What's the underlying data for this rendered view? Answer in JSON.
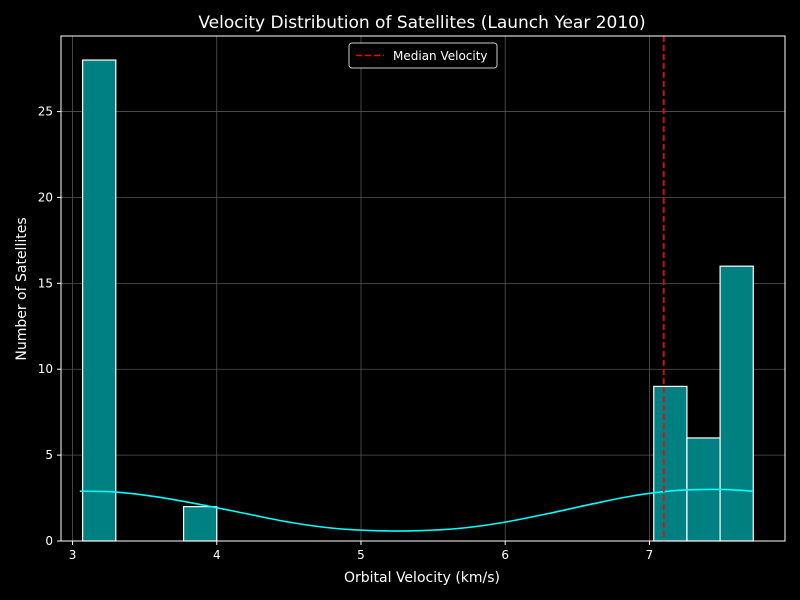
{
  "chart_data": {
    "type": "bar",
    "title": "Velocity Distribution of Satellites (Launch Year 2010)",
    "xlabel": "Orbital Velocity (km/s)",
    "ylabel": "Number of Satellites",
    "xlim": [
      2.92,
      7.94
    ],
    "ylim": [
      0,
      29.4
    ],
    "xticks": [
      3,
      4,
      5,
      6,
      7
    ],
    "yticks": [
      0,
      5,
      10,
      15,
      20,
      25
    ],
    "grid": true,
    "legend_position": "top-center",
    "bins": [
      {
        "x0": 3.07,
        "x1": 3.3,
        "count": 28
      },
      {
        "x0": 3.77,
        "x1": 4.0,
        "count": 2
      },
      {
        "x0": 7.03,
        "x1": 7.26,
        "count": 9
      },
      {
        "x0": 7.26,
        "x1": 7.49,
        "count": 6
      },
      {
        "x0": 7.49,
        "x1": 7.72,
        "count": 16
      }
    ],
    "kde_curve": {
      "x": [
        3.05,
        3.3,
        3.6,
        3.9,
        4.2,
        4.5,
        4.8,
        5.1,
        5.4,
        5.7,
        6.0,
        6.3,
        6.6,
        6.9,
        7.2,
        7.5,
        7.72
      ],
      "y": [
        2.9,
        2.85,
        2.55,
        2.1,
        1.6,
        1.1,
        0.75,
        0.6,
        0.6,
        0.75,
        1.1,
        1.6,
        2.15,
        2.65,
        2.95,
        3.0,
        2.9
      ]
    },
    "median": {
      "value": 7.1,
      "label": "Median Velocity"
    },
    "colors": {
      "background": "#000000",
      "bar_fill": "#008080",
      "bar_edge": "#ffffff",
      "kde": "#00ffff",
      "median_line": "#ff0000",
      "text": "#ffffff",
      "grid": "#555555"
    }
  }
}
